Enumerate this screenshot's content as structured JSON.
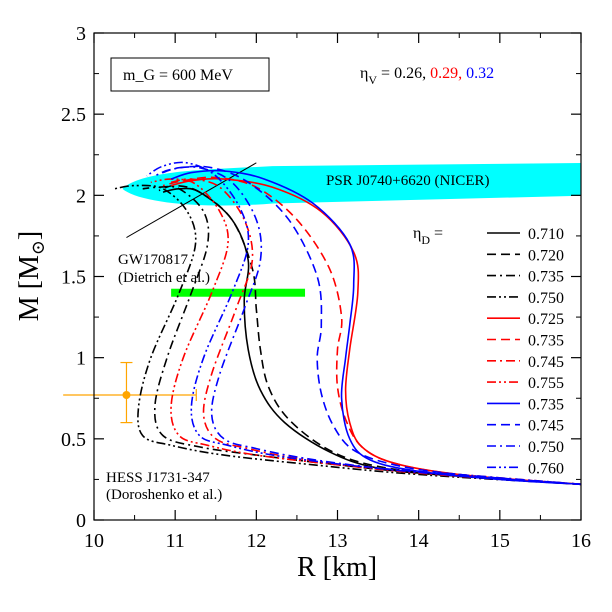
{
  "chart_data": {
    "type": "line",
    "xlabel": "R [km]",
    "ylabel_main": "M [M",
    "ylabel_sub": "⊙",
    "ylabel_close": "]",
    "xlim": [
      10,
      16
    ],
    "ylim": [
      0,
      3
    ],
    "xticks": [
      "10",
      "11",
      "12",
      "13",
      "14",
      "15",
      "16"
    ],
    "yticks": [
      "0",
      "0.5",
      "1",
      "1.5",
      "2",
      "2.5",
      "3"
    ],
    "grid": false,
    "model_box": "m_G = 600 MeV",
    "eta_v": {
      "symbol": "η",
      "sub": "V",
      "eq": " = ",
      "values": [
        {
          "text": "0.26,",
          "color": "#000000"
        },
        {
          "text": "0.29,",
          "color": "#ff0000"
        },
        {
          "text": "0.32",
          "color": "#0000ff"
        }
      ]
    },
    "eta_d_label": {
      "symbol": "η",
      "sub": "D",
      "eq": " ="
    },
    "legend_position": "right",
    "annotations": {
      "nicer": "PSR J0740+6620 (NICER)",
      "gw_name": "GW170817",
      "gw_ref": "(Dietrich et al.)",
      "hess_name": "HESS J1731-347",
      "hess_ref": "(Doroshenko et al.)"
    },
    "nicer_color": "#00ffff",
    "gw_band": {
      "r_min": 10.95,
      "r_max": 12.6,
      "m": 1.4,
      "color": "#00ff00"
    },
    "gw_line": [
      [
        10.4,
        1.74
      ],
      [
        12.0,
        2.2
      ]
    ],
    "hess_point": {
      "r": 10.4,
      "m": 0.77,
      "r_err": [
        0.78,
        0.86
      ],
      "m_err": [
        0.17,
        0.2
      ],
      "color": "#ffa500"
    },
    "series": [
      {
        "name": "0.710",
        "color": "#000000",
        "dash": "solid",
        "points": [
          [
            16.0,
            0.22
          ],
          [
            14.5,
            0.27
          ],
          [
            13.5,
            0.32
          ],
          [
            12.9,
            0.42
          ],
          [
            12.35,
            0.6
          ],
          [
            12.05,
            0.8
          ],
          [
            11.9,
            1.05
          ],
          [
            11.85,
            1.35
          ],
          [
            11.9,
            1.6
          ],
          [
            11.7,
            1.85
          ],
          [
            11.3,
            2.02
          ],
          [
            11.05,
            2.04
          ],
          [
            10.85,
            2.02
          ]
        ]
      },
      {
        "name": "0.720",
        "color": "#000000",
        "dash": "dash",
        "points": [
          [
            16.0,
            0.22
          ],
          [
            14.5,
            0.27
          ],
          [
            13.5,
            0.33
          ],
          [
            12.9,
            0.43
          ],
          [
            12.4,
            0.62
          ],
          [
            12.15,
            0.82
          ],
          [
            12.05,
            1.05
          ],
          [
            12.0,
            1.3
          ],
          [
            11.95,
            1.55
          ],
          [
            11.7,
            1.85
          ],
          [
            11.3,
            2.02
          ],
          [
            11.0,
            2.06
          ],
          [
            10.8,
            2.03
          ]
        ]
      },
      {
        "name": "0.735",
        "color": "#000000",
        "dash": "dashdot",
        "points": [
          [
            16.0,
            0.22
          ],
          [
            14.2,
            0.28
          ],
          [
            13.0,
            0.34
          ],
          [
            12.0,
            0.4
          ],
          [
            11.3,
            0.45
          ],
          [
            10.85,
            0.52
          ],
          [
            10.75,
            0.7
          ],
          [
            10.9,
            1.0
          ],
          [
            11.2,
            1.4
          ],
          [
            11.4,
            1.7
          ],
          [
            11.35,
            1.9
          ],
          [
            11.05,
            2.04
          ],
          [
            10.8,
            2.05
          ],
          [
            10.6,
            2.04
          ]
        ]
      },
      {
        "name": "0.750",
        "color": "#000000",
        "dash": "dashdotdot",
        "points": [
          [
            16.0,
            0.22
          ],
          [
            14.0,
            0.28
          ],
          [
            12.7,
            0.34
          ],
          [
            11.6,
            0.4
          ],
          [
            10.95,
            0.46
          ],
          [
            10.6,
            0.52
          ],
          [
            10.55,
            0.7
          ],
          [
            10.7,
            1.0
          ],
          [
            11.05,
            1.4
          ],
          [
            11.25,
            1.7
          ],
          [
            11.15,
            1.9
          ],
          [
            10.85,
            2.04
          ],
          [
            10.5,
            2.06
          ],
          [
            10.25,
            2.04
          ]
        ]
      },
      {
        "name": "0.725",
        "color": "#ff0000",
        "dash": "solid",
        "points": [
          [
            16.0,
            0.22
          ],
          [
            14.5,
            0.28
          ],
          [
            13.7,
            0.35
          ],
          [
            13.3,
            0.45
          ],
          [
            13.15,
            0.6
          ],
          [
            13.1,
            0.8
          ],
          [
            13.15,
            1.05
          ],
          [
            13.25,
            1.4
          ],
          [
            13.2,
            1.65
          ],
          [
            12.8,
            1.9
          ],
          [
            12.2,
            2.05
          ],
          [
            11.6,
            2.1
          ],
          [
            11.2,
            2.09
          ],
          [
            10.95,
            2.06
          ]
        ]
      },
      {
        "name": "0.735",
        "color": "#ff0000",
        "dash": "dash",
        "points": [
          [
            16.0,
            0.22
          ],
          [
            14.5,
            0.28
          ],
          [
            13.7,
            0.35
          ],
          [
            13.3,
            0.45
          ],
          [
            13.1,
            0.62
          ],
          [
            13.0,
            0.82
          ],
          [
            13.0,
            1.05
          ],
          [
            13.05,
            1.25
          ],
          [
            12.9,
            1.55
          ],
          [
            12.5,
            1.85
          ],
          [
            12.0,
            2.05
          ],
          [
            11.5,
            2.11
          ],
          [
            11.1,
            2.09
          ],
          [
            10.85,
            2.06
          ]
        ]
      },
      {
        "name": "0.745",
        "color": "#ff0000",
        "dash": "dashdot",
        "points": [
          [
            16.0,
            0.22
          ],
          [
            14.5,
            0.28
          ],
          [
            13.5,
            0.32
          ],
          [
            12.5,
            0.38
          ],
          [
            11.9,
            0.44
          ],
          [
            11.5,
            0.5
          ],
          [
            11.35,
            0.65
          ],
          [
            11.45,
            0.9
          ],
          [
            11.75,
            1.3
          ],
          [
            11.95,
            1.6
          ],
          [
            11.85,
            1.85
          ],
          [
            11.55,
            2.05
          ],
          [
            11.2,
            2.1
          ],
          [
            10.95,
            2.08
          ]
        ]
      },
      {
        "name": "0.755",
        "color": "#ff0000",
        "dash": "dashdotdot",
        "points": [
          [
            16.0,
            0.22
          ],
          [
            14.2,
            0.28
          ],
          [
            13.0,
            0.34
          ],
          [
            12.0,
            0.4
          ],
          [
            11.4,
            0.46
          ],
          [
            11.05,
            0.52
          ],
          [
            10.95,
            0.7
          ],
          [
            11.1,
            1.0
          ],
          [
            11.45,
            1.4
          ],
          [
            11.65,
            1.7
          ],
          [
            11.55,
            1.9
          ],
          [
            11.25,
            2.07
          ],
          [
            10.95,
            2.1
          ],
          [
            10.7,
            2.08
          ]
        ]
      },
      {
        "name": "0.735",
        "color": "#0000ff",
        "dash": "solid",
        "points": [
          [
            16.0,
            0.22
          ],
          [
            15.0,
            0.25
          ],
          [
            14.0,
            0.3
          ],
          [
            13.4,
            0.37
          ],
          [
            13.15,
            0.5
          ],
          [
            13.05,
            0.75
          ],
          [
            13.1,
            1.0
          ],
          [
            13.15,
            1.2
          ],
          [
            13.2,
            1.45
          ],
          [
            13.15,
            1.7
          ],
          [
            12.7,
            1.95
          ],
          [
            12.1,
            2.1
          ],
          [
            11.6,
            2.15
          ],
          [
            11.2,
            2.14
          ],
          [
            10.95,
            2.1
          ]
        ]
      },
      {
        "name": "0.745",
        "color": "#0000ff",
        "dash": "dash",
        "points": [
          [
            16.0,
            0.22
          ],
          [
            14.5,
            0.28
          ],
          [
            13.7,
            0.34
          ],
          [
            13.2,
            0.43
          ],
          [
            12.95,
            0.58
          ],
          [
            12.8,
            0.78
          ],
          [
            12.75,
            1.0
          ],
          [
            12.8,
            1.2
          ],
          [
            12.75,
            1.5
          ],
          [
            12.4,
            1.85
          ],
          [
            11.9,
            2.08
          ],
          [
            11.45,
            2.17
          ],
          [
            11.05,
            2.17
          ],
          [
            10.8,
            2.13
          ]
        ]
      },
      {
        "name": "0.750",
        "color": "#0000ff",
        "dash": "dashdot",
        "points": [
          [
            16.0,
            0.22
          ],
          [
            14.5,
            0.28
          ],
          [
            13.5,
            0.32
          ],
          [
            12.6,
            0.38
          ],
          [
            12.0,
            0.44
          ],
          [
            11.6,
            0.5
          ],
          [
            11.45,
            0.65
          ],
          [
            11.55,
            0.9
          ],
          [
            11.85,
            1.3
          ],
          [
            12.05,
            1.6
          ],
          [
            12.0,
            1.85
          ],
          [
            11.7,
            2.08
          ],
          [
            11.3,
            2.17
          ],
          [
            10.95,
            2.16
          ],
          [
            10.75,
            2.12
          ]
        ]
      },
      {
        "name": "0.760",
        "color": "#0000ff",
        "dash": "dashdotdot",
        "points": [
          [
            16.0,
            0.22
          ],
          [
            14.3,
            0.28
          ],
          [
            13.1,
            0.34
          ],
          [
            12.2,
            0.4
          ],
          [
            11.65,
            0.46
          ],
          [
            11.3,
            0.52
          ],
          [
            11.2,
            0.7
          ],
          [
            11.35,
            1.0
          ],
          [
            11.7,
            1.4
          ],
          [
            11.9,
            1.7
          ],
          [
            11.8,
            1.92
          ],
          [
            11.5,
            2.12
          ],
          [
            11.15,
            2.2
          ],
          [
            10.85,
            2.18
          ],
          [
            10.65,
            2.12
          ]
        ]
      }
    ]
  }
}
